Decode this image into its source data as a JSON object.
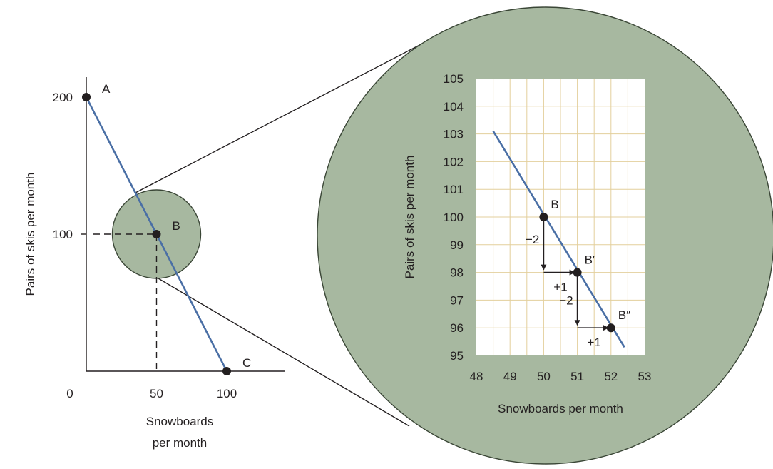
{
  "colors": {
    "line": "#4a6fa5",
    "zoom_fill": "#a7b8a0",
    "zoom_stroke": "#3a4636",
    "grid": "#e3cf9c",
    "text": "#231f20"
  },
  "chart_data": [
    {
      "type": "line",
      "xlabel_lines": [
        "Snowboards",
        "per month"
      ],
      "ylabel": "Pairs of skis per month",
      "origin_label": "0",
      "x_ticks": [
        {
          "value": 50,
          "label": "50"
        },
        {
          "value": 100,
          "label": "100"
        }
      ],
      "y_ticks": [
        {
          "value": 100,
          "label": "100"
        },
        {
          "value": 200,
          "label": "200"
        }
      ],
      "xlim": [
        0,
        140
      ],
      "ylim": [
        0,
        200
      ],
      "series": [
        {
          "x": [
            0,
            100
          ],
          "y": [
            200,
            0
          ]
        }
      ],
      "points": [
        {
          "label": "A",
          "x": 0,
          "y": 200
        },
        {
          "label": "B",
          "x": 50,
          "y": 100
        },
        {
          "label": "C",
          "x": 100,
          "y": 0
        }
      ],
      "guide": {
        "x": 50,
        "y": 100
      },
      "magnifier": {
        "center_x": 50,
        "center_y": 100
      }
    },
    {
      "type": "line",
      "xlabel": "Snowboards per month",
      "ylabel": "Pairs of skis per month",
      "grid": true,
      "xlim": [
        48,
        53
      ],
      "ylim": [
        95,
        105
      ],
      "x_tick_labels": [
        "48",
        "49",
        "50",
        "51",
        "52",
        "53"
      ],
      "y_tick_labels": [
        "95",
        "96",
        "97",
        "98",
        "99",
        "100",
        "101",
        "102",
        "103",
        "104",
        "105"
      ],
      "series": [
        {
          "x": [
            48.5,
            52.4
          ],
          "y": [
            103.1,
            95.3
          ]
        }
      ],
      "points": [
        {
          "label": "B",
          "x": 50,
          "y": 100
        },
        {
          "label": "B′",
          "x": 51,
          "y": 98
        },
        {
          "label": "B″",
          "x": 52,
          "y": 96
        }
      ],
      "steps": [
        {
          "from": [
            50,
            100
          ],
          "to": [
            50,
            98
          ],
          "label": "−2"
        },
        {
          "from": [
            50,
            98
          ],
          "to": [
            51,
            98
          ],
          "label": "+1"
        },
        {
          "from": [
            51,
            98
          ],
          "to": [
            51,
            96
          ],
          "label": "−2"
        },
        {
          "from": [
            51,
            96
          ],
          "to": [
            52,
            96
          ],
          "label": "+1"
        }
      ]
    }
  ]
}
